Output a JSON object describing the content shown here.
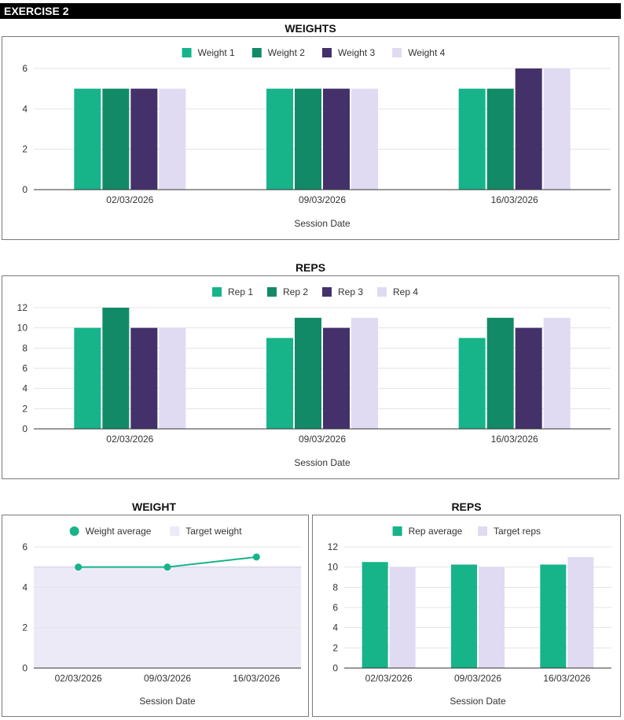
{
  "header": {
    "title": "EXERCISE 2"
  },
  "colors": {
    "c1": "#17b48a",
    "c2": "#128a68",
    "c3": "#44316a",
    "c4": "#e0daf2",
    "grid": "#e6e6e6",
    "axis": "#333333",
    "target_fill": "#edeaf8"
  },
  "chart_data": [
    {
      "id": "weights",
      "type": "bar",
      "title": "WEIGHTS",
      "xlabel": "Session Date",
      "ylabel": "",
      "categories": [
        "02/03/2026",
        "09/03/2026",
        "16/03/2026"
      ],
      "yticks": [
        "0",
        "2",
        "4",
        "6"
      ],
      "ylim": [
        0,
        6
      ],
      "grid": true,
      "legend": "top-center",
      "series": [
        {
          "name": "Weight 1",
          "color": "#17b48a",
          "values": [
            5,
            5,
            5
          ]
        },
        {
          "name": "Weight 2",
          "color": "#128a68",
          "values": [
            5,
            5,
            5
          ]
        },
        {
          "name": "Weight 3",
          "color": "#44316a",
          "values": [
            5,
            5,
            6
          ]
        },
        {
          "name": "Weight 4",
          "color": "#e0daf2",
          "values": [
            5,
            5,
            6
          ]
        }
      ]
    },
    {
      "id": "reps",
      "type": "bar",
      "title": "REPS",
      "xlabel": "Session Date",
      "ylabel": "",
      "categories": [
        "02/03/2026",
        "09/03/2026",
        "16/03/2026"
      ],
      "yticks": [
        "0",
        "2",
        "4",
        "6",
        "8",
        "10",
        "12"
      ],
      "ylim": [
        0,
        12
      ],
      "grid": true,
      "legend": "top-center",
      "series": [
        {
          "name": "Rep 1",
          "color": "#17b48a",
          "values": [
            10,
            9,
            9
          ]
        },
        {
          "name": "Rep 2",
          "color": "#128a68",
          "values": [
            12,
            11,
            11
          ]
        },
        {
          "name": "Rep 3",
          "color": "#44316a",
          "values": [
            10,
            10,
            10
          ]
        },
        {
          "name": "Rep 4",
          "color": "#e0daf2",
          "values": [
            10,
            11,
            11
          ]
        }
      ]
    },
    {
      "id": "weight-avg",
      "type": "line",
      "title": "WEIGHT",
      "xlabel": "Session Date",
      "ylabel": "",
      "categories": [
        "02/03/2026",
        "09/03/2026",
        "16/03/2026"
      ],
      "yticks": [
        "0",
        "2",
        "4",
        "6"
      ],
      "ylim": [
        0,
        6
      ],
      "grid": true,
      "legend": "top-center",
      "series": [
        {
          "name": "Weight average",
          "color": "#17b48a",
          "kind": "line",
          "values": [
            5,
            5,
            5.5
          ]
        },
        {
          "name": "Target weight",
          "color": "#edeaf8",
          "kind": "area",
          "values": [
            5,
            5,
            5
          ]
        }
      ]
    },
    {
      "id": "reps-avg",
      "type": "bar",
      "title": "REPS",
      "xlabel": "Session Date",
      "ylabel": "",
      "categories": [
        "02/03/2026",
        "09/03/2026",
        "16/03/2026"
      ],
      "yticks": [
        "0",
        "2",
        "4",
        "6",
        "8",
        "10",
        "12"
      ],
      "ylim": [
        0,
        12
      ],
      "grid": true,
      "legend": "top-center",
      "series": [
        {
          "name": "Rep average",
          "color": "#17b48a",
          "values": [
            10.5,
            10.25,
            10.25
          ]
        },
        {
          "name": "Target reps",
          "color": "#e0daf2",
          "values": [
            10,
            10,
            11
          ]
        }
      ]
    }
  ]
}
